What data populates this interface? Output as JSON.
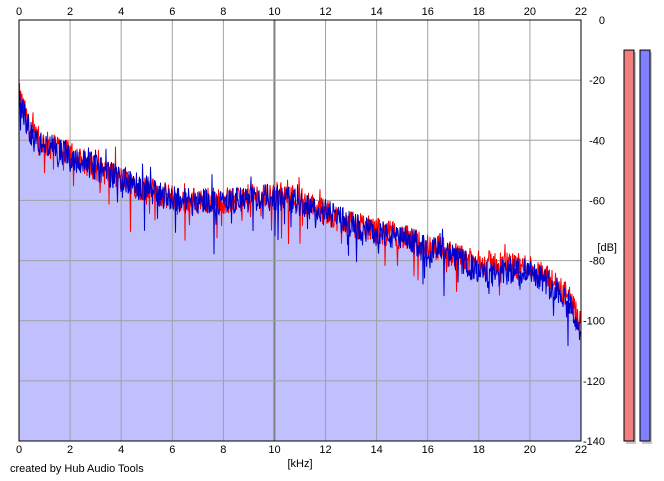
{
  "credit": "created by Hub Audio Tools",
  "chart_data": {
    "type": "area",
    "xlabel": "[kHz]",
    "ylabel": "[dB]",
    "xlim": [
      0,
      22
    ],
    "ylim": [
      -140,
      0
    ],
    "x_ticks": [
      0,
      2,
      4,
      6,
      8,
      10,
      12,
      14,
      16,
      18,
      20,
      22
    ],
    "y_ticks": [
      0,
      -20,
      -40,
      -60,
      -80,
      -100,
      -120,
      -140
    ],
    "x_tick_labels": [
      "0",
      "2",
      "4",
      "6",
      "8",
      "10",
      "12",
      "14",
      "16",
      "18",
      "20",
      "22"
    ],
    "y_tick_labels": [
      "0",
      "-20",
      "-40",
      "-60",
      "-80",
      "-100",
      "-120",
      "-140"
    ],
    "grid": true,
    "colors": {
      "fill": "#c0c0ff",
      "red": "#ff0000",
      "blue": "#0000cc",
      "grid": "#a0a0a0",
      "grid_major": "#808080",
      "meter_red": "#f08080",
      "meter_blue": "#8080ff"
    },
    "series": [
      {
        "color": "red",
        "x": [
          0,
          0.2,
          0.4,
          0.6,
          0.8,
          1,
          1.2,
          1.4,
          1.6,
          1.8,
          2,
          2.5,
          3,
          3.5,
          4,
          4.5,
          5,
          5.5,
          6,
          6.5,
          7,
          7.5,
          8,
          8.5,
          9,
          9.5,
          10,
          10.5,
          11,
          11.5,
          12,
          12.5,
          13,
          13.5,
          14,
          14.5,
          15,
          15.5,
          16,
          16.5,
          17,
          17.5,
          18,
          18.5,
          19,
          19.5,
          20,
          20.5,
          21,
          21.5,
          22
        ],
        "y": [
          -25,
          -30,
          -36,
          -39,
          -40,
          -41,
          -42,
          -42,
          -43,
          -44,
          -45,
          -47,
          -49,
          -51,
          -53,
          -55,
          -56,
          -58,
          -59,
          -60,
          -60,
          -60,
          -60,
          -60,
          -59,
          -59,
          -58,
          -58,
          -60,
          -62,
          -64,
          -66,
          -68,
          -69,
          -70,
          -71,
          -72,
          -74,
          -75,
          -76,
          -78,
          -80,
          -81,
          -81,
          -81,
          -82,
          -82,
          -85,
          -88,
          -92,
          -102
        ]
      },
      {
        "color": "blue",
        "x": [
          0,
          0.2,
          0.4,
          0.6,
          0.8,
          1,
          1.2,
          1.4,
          1.6,
          1.8,
          2,
          2.5,
          3,
          3.5,
          4,
          4.5,
          5,
          5.5,
          6,
          6.5,
          7,
          7.5,
          8,
          8.5,
          9,
          9.5,
          10,
          10.5,
          11,
          11.5,
          12,
          12.5,
          13,
          13.5,
          14,
          14.5,
          15,
          15.5,
          16,
          16.5,
          17,
          17.5,
          18,
          18.5,
          19,
          19.5,
          20,
          20.5,
          21,
          21.5,
          22
        ],
        "y": [
          -26,
          -31,
          -37,
          -40,
          -41,
          -42,
          -42,
          -43,
          -44,
          -44,
          -46,
          -47,
          -49,
          -51,
          -53,
          -55,
          -56,
          -58,
          -59,
          -60,
          -60,
          -60,
          -61,
          -60,
          -60,
          -59,
          -59,
          -59,
          -61,
          -63,
          -64,
          -66,
          -68,
          -70,
          -70,
          -72,
          -73,
          -74,
          -76,
          -77,
          -79,
          -81,
          -84,
          -85,
          -84,
          -83,
          -83,
          -86,
          -89,
          -93,
          -104
        ]
      }
    ],
    "meters": [
      {
        "color": "red",
        "value": -10
      },
      {
        "color": "blue",
        "value": -10
      }
    ]
  }
}
